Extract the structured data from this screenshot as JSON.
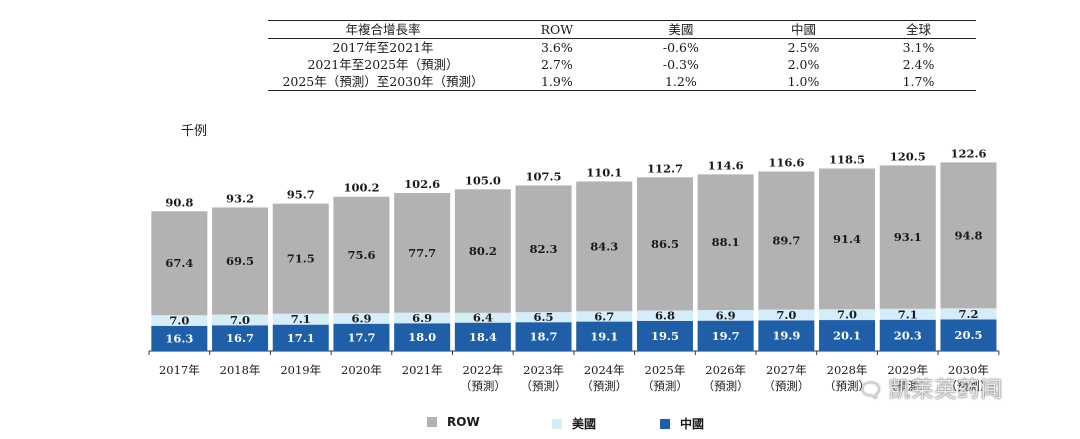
{
  "cagr_table": {
    "headers": [
      "年複合增長率",
      "ROW",
      "美國",
      "中國",
      "全球"
    ],
    "rows": [
      [
        "2017年至2021年",
        "3.6%",
        "-0.6%",
        "2.5%",
        "3.1%"
      ],
      [
        "2021年至2025年（預測）",
        "2.7%",
        "-0.3%",
        "2.0%",
        "2.4%"
      ],
      [
        "2025年（預測）至2030年（預測）",
        "1.9%",
        "1.2%",
        "1.0%",
        "1.7%"
      ]
    ]
  },
  "chart_unit": "千例",
  "watermark": "凯莱英药闻",
  "colors": {
    "row": "#b2b2b2",
    "us": "#d5ecf9",
    "china": "#1f5fa8"
  },
  "chart_data": {
    "type": "bar",
    "stacked": true,
    "categories": [
      {
        "year": "2017年",
        "note": ""
      },
      {
        "year": "2018年",
        "note": ""
      },
      {
        "year": "2019年",
        "note": ""
      },
      {
        "year": "2020年",
        "note": ""
      },
      {
        "year": "2021年",
        "note": ""
      },
      {
        "year": "2022年",
        "note": "（預測）"
      },
      {
        "year": "2023年",
        "note": "（預測）"
      },
      {
        "year": "2024年",
        "note": "（預測）"
      },
      {
        "year": "2025年",
        "note": "（預測）"
      },
      {
        "year": "2026年",
        "note": "（預測）"
      },
      {
        "year": "2027年",
        "note": "（預測）"
      },
      {
        "year": "2028年",
        "note": "（預測）"
      },
      {
        "year": "2029年",
        "note": "（預測）"
      },
      {
        "year": "2030年",
        "note": "（預測）"
      }
    ],
    "series": [
      {
        "name": "中國",
        "key": "china",
        "values": [
          16.3,
          16.7,
          17.1,
          17.7,
          18.0,
          18.4,
          18.7,
          19.1,
          19.5,
          19.7,
          19.9,
          20.1,
          20.3,
          20.5
        ]
      },
      {
        "name": "美國",
        "key": "us",
        "values": [
          7.0,
          7.0,
          7.1,
          6.9,
          6.9,
          6.4,
          6.5,
          6.7,
          6.8,
          6.9,
          7.0,
          7.0,
          7.1,
          7.2
        ]
      },
      {
        "name": "ROW",
        "key": "row",
        "values": [
          67.4,
          69.5,
          71.5,
          75.6,
          77.7,
          80.2,
          82.3,
          84.3,
          86.5,
          88.1,
          89.7,
          91.4,
          93.1,
          94.8
        ]
      }
    ],
    "totals": [
      90.8,
      93.2,
      95.7,
      100.2,
      102.6,
      105.0,
      107.5,
      110.1,
      112.7,
      114.6,
      116.6,
      118.5,
      120.5,
      122.6
    ],
    "legend": [
      "ROW",
      "美國",
      "中國"
    ],
    "legend_position": "bottom",
    "grid": false
  }
}
